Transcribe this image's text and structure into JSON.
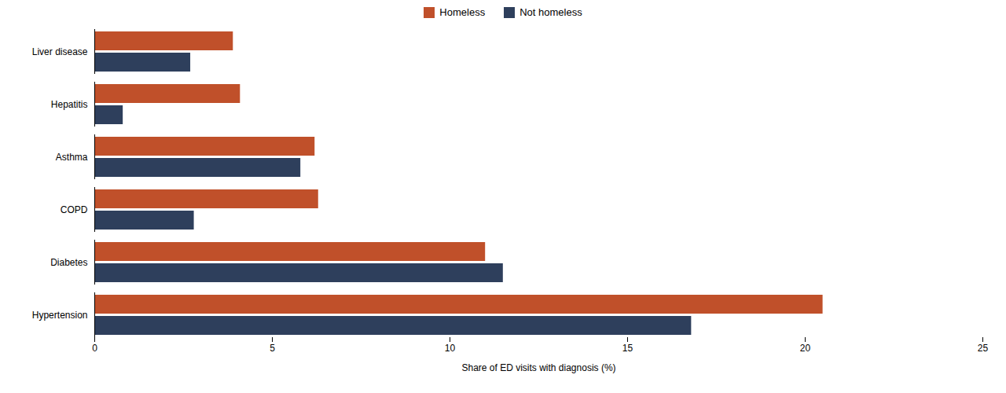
{
  "chart_data": {
    "type": "bar",
    "orientation": "horizontal",
    "categories": [
      "Hypertension",
      "Diabetes",
      "COPD",
      "Asthma",
      "Hepatitis",
      "Liver disease"
    ],
    "series": [
      {
        "name": "Homeless",
        "color": "#C0502A",
        "values": [
          20.5,
          11.0,
          6.3,
          6.2,
          4.1,
          3.9
        ]
      },
      {
        "name": "Not homeless",
        "color": "#2E3F5C",
        "values": [
          16.8,
          11.5,
          2.8,
          5.8,
          0.8,
          2.7
        ]
      }
    ],
    "xlabel": "Share of ED visits with diagnosis (%)",
    "xlim": [
      0,
      25
    ],
    "xticks": [
      0,
      5,
      10,
      15,
      20,
      25
    ],
    "grid": false,
    "legend": "top"
  }
}
